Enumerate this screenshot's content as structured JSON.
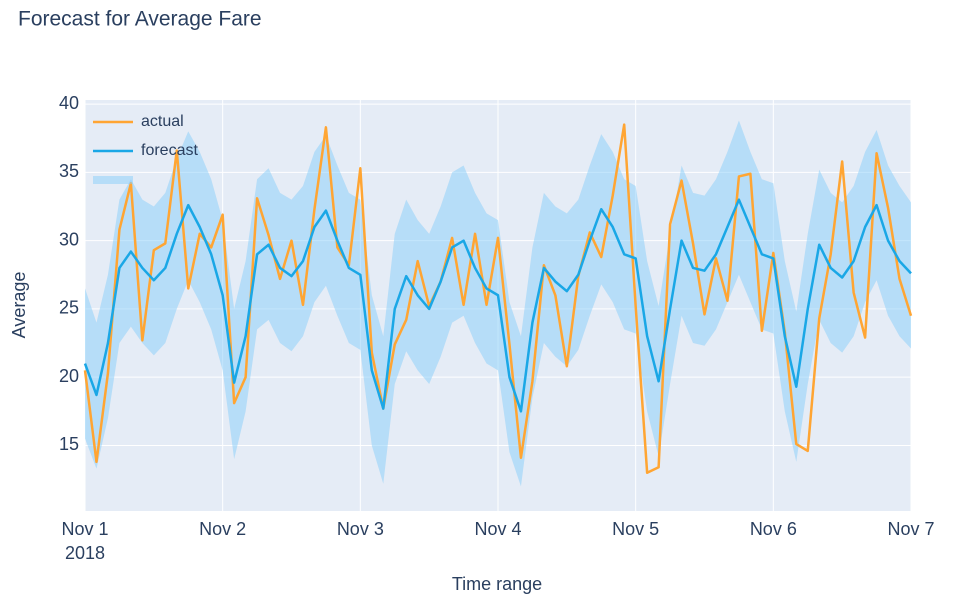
{
  "chart_data": {
    "type": "line",
    "title": "Forecast for Average Fare",
    "x_label": "Time range",
    "y_label": "Average",
    "x": [
      "2018-11-01 00:00",
      "2018-11-01 02:00",
      "2018-11-01 04:00",
      "2018-11-01 06:00",
      "2018-11-01 08:00",
      "2018-11-01 10:00",
      "2018-11-01 12:00",
      "2018-11-01 14:00",
      "2018-11-01 16:00",
      "2018-11-01 18:00",
      "2018-11-01 20:00",
      "2018-11-01 22:00",
      "2018-11-02 00:00",
      "2018-11-02 02:00",
      "2018-11-02 04:00",
      "2018-11-02 06:00",
      "2018-11-02 08:00",
      "2018-11-02 10:00",
      "2018-11-02 12:00",
      "2018-11-02 14:00",
      "2018-11-02 16:00",
      "2018-11-02 18:00",
      "2018-11-02 20:00",
      "2018-11-02 22:00",
      "2018-11-03 00:00",
      "2018-11-03 02:00",
      "2018-11-03 04:00",
      "2018-11-03 06:00",
      "2018-11-03 08:00",
      "2018-11-03 10:00",
      "2018-11-03 12:00",
      "2018-11-03 14:00",
      "2018-11-03 16:00",
      "2018-11-03 18:00",
      "2018-11-03 20:00",
      "2018-11-03 22:00",
      "2018-11-04 00:00",
      "2018-11-04 02:00",
      "2018-11-04 04:00",
      "2018-11-04 06:00",
      "2018-11-04 08:00",
      "2018-11-04 10:00",
      "2018-11-04 12:00",
      "2018-11-04 14:00",
      "2018-11-04 16:00",
      "2018-11-04 18:00",
      "2018-11-04 20:00",
      "2018-11-04 22:00",
      "2018-11-05 00:00",
      "2018-11-05 02:00",
      "2018-11-05 04:00",
      "2018-11-05 06:00",
      "2018-11-05 08:00",
      "2018-11-05 10:00",
      "2018-11-05 12:00",
      "2018-11-05 14:00",
      "2018-11-05 16:00",
      "2018-11-05 18:00",
      "2018-11-05 20:00",
      "2018-11-05 22:00",
      "2018-11-06 00:00",
      "2018-11-06 02:00",
      "2018-11-06 04:00",
      "2018-11-06 06:00",
      "2018-11-06 08:00",
      "2018-11-06 10:00",
      "2018-11-06 12:00",
      "2018-11-06 14:00",
      "2018-11-06 16:00",
      "2018-11-06 18:00",
      "2018-11-06 20:00",
      "2018-11-06 22:00",
      "2018-11-07 00:00"
    ],
    "xlim": [
      "2018-11-01 00:00",
      "2018-11-07 00:00"
    ],
    "xticks": [
      {
        "value": "2018-11-01",
        "label": "Nov 1"
      },
      {
        "value": "2018-11-02",
        "label": "Nov 2"
      },
      {
        "value": "2018-11-03",
        "label": "Nov 3"
      },
      {
        "value": "2018-11-04",
        "label": "Nov 4"
      },
      {
        "value": "2018-11-05",
        "label": "Nov 5"
      },
      {
        "value": "2018-11-06",
        "label": "Nov 6"
      },
      {
        "value": "2018-11-07",
        "label": "Nov 7"
      }
    ],
    "x_year": "2018",
    "ylim": [
      10.2,
      40.3
    ],
    "yticks": [
      15,
      20,
      25,
      30,
      35,
      40
    ],
    "grid": true,
    "legend": "top-left",
    "band": {
      "color": "#87cefa",
      "upper": [
        26.5,
        24,
        27.5,
        33,
        34.5,
        33,
        32.5,
        33.5,
        36,
        38,
        36.5,
        34.5,
        31.5,
        25,
        28.5,
        34.5,
        35.3,
        33.5,
        33,
        34,
        36.5,
        37.7,
        35.5,
        33.5,
        33,
        26,
        23,
        30.5,
        33,
        31.5,
        30.5,
        32.5,
        35,
        35.5,
        33.5,
        32,
        31.5,
        25.5,
        23,
        29.5,
        33.5,
        32.5,
        32,
        33,
        35.5,
        37.8,
        36.5,
        34.5,
        34,
        28.5,
        25.2,
        30.5,
        35.5,
        33.5,
        33.3,
        34.5,
        36.5,
        38.8,
        36.5,
        34.5,
        34.2,
        28.5,
        24.8,
        30.5,
        35.2,
        33.5,
        32.8,
        34,
        36.5,
        38.1,
        35.5,
        34,
        32.8
      ],
      "lower": [
        15.5,
        13.3,
        17,
        22.5,
        23.7,
        22.5,
        21.6,
        22.5,
        25,
        27.1,
        25.5,
        23.5,
        20.5,
        14,
        17.5,
        23.5,
        24.2,
        22.5,
        21.9,
        23,
        25.5,
        26.7,
        24.5,
        22.5,
        22,
        15,
        12.2,
        19.5,
        21.9,
        20.5,
        19.5,
        21.5,
        24,
        24.5,
        22.5,
        21,
        20.5,
        14.5,
        12,
        18.5,
        22.5,
        21.5,
        20.8,
        22,
        24.5,
        26.8,
        25.5,
        23.5,
        23.2,
        17.5,
        14.2,
        19.5,
        24.5,
        22.5,
        22.3,
        23.5,
        25.5,
        27.5,
        25.5,
        23.5,
        23.2,
        17.5,
        13.8,
        19.5,
        24.2,
        22.5,
        21.8,
        23,
        25.5,
        27.1,
        24.5,
        23,
        22.1
      ]
    },
    "series": [
      {
        "name": "actual",
        "color": "#ffa533",
        "values": [
          20.5,
          13.8,
          20.3,
          30.8,
          34.2,
          22.7,
          29.3,
          29.8,
          36.6,
          26.5,
          30.5,
          29.5,
          31.9,
          18.1,
          20,
          33.1,
          30.4,
          27.2,
          30,
          25.3,
          32.3,
          38.3,
          29.5,
          28.2,
          35.3,
          21.8,
          17.7,
          22.4,
          24.2,
          28.5,
          25.2,
          27,
          30.2,
          25.3,
          30.5,
          25.3,
          30.2,
          22.4,
          14.1,
          19.7,
          28.2,
          26,
          20.8,
          27.4,
          30.6,
          28.8,
          33.3,
          38.5,
          25.2,
          13,
          13.4,
          31.2,
          34.4,
          29.8,
          24.6,
          28.7,
          25.6,
          34.7,
          34.9,
          23.4,
          29.1,
          23.3,
          15.1,
          14.6,
          24.3,
          29,
          35.8,
          26.2,
          22.9,
          36.4,
          32.4,
          27.2,
          24.5
        ]
      },
      {
        "name": "forecast",
        "color": "#1aa7e6",
        "values": [
          21,
          18.7,
          22.5,
          28,
          29.2,
          28,
          27.1,
          28,
          30.5,
          32.6,
          31,
          29,
          26,
          19.6,
          23,
          29,
          29.7,
          28,
          27.4,
          28.5,
          31,
          32.2,
          30,
          28,
          27.5,
          20.5,
          17.7,
          25,
          27.4,
          26,
          25,
          27,
          29.5,
          30,
          28,
          26.5,
          26,
          20,
          17.5,
          24,
          28,
          27,
          26.3,
          27.5,
          30,
          32.3,
          31,
          29,
          28.7,
          23,
          19.7,
          25,
          30,
          28,
          27.8,
          29,
          31,
          33,
          31,
          29,
          28.7,
          23,
          19.3,
          25,
          29.7,
          28,
          27.3,
          28.5,
          31,
          32.6,
          30,
          28.5,
          27.6
        ]
      }
    ]
  }
}
